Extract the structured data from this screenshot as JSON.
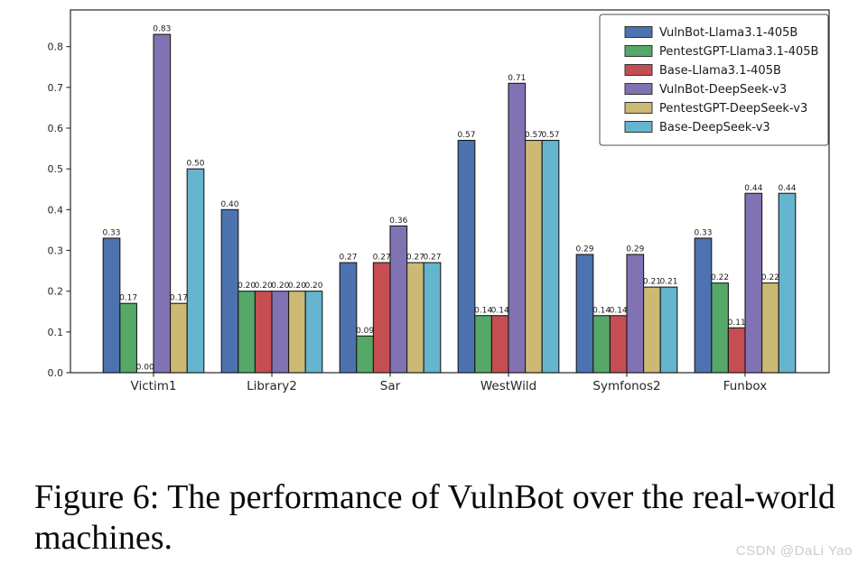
{
  "chart_data": {
    "type": "bar",
    "title": "",
    "categories": [
      "Victim1",
      "Library2",
      "Sar",
      "WestWild",
      "Symfonos2",
      "Funbox"
    ],
    "series": [
      {
        "name": "VulnBot-Llama3.1-405B",
        "color": "#4C72B0",
        "values": [
          0.33,
          0.4,
          0.27,
          0.57,
          0.29,
          0.33
        ]
      },
      {
        "name": "PentestGPT-Llama3.1-405B",
        "color": "#55A868",
        "values": [
          0.17,
          0.2,
          0.09,
          0.14,
          0.14,
          0.22
        ]
      },
      {
        "name": "Base-Llama3.1-405B",
        "color": "#C44E52",
        "values": [
          0.0,
          0.2,
          0.27,
          0.14,
          0.14,
          0.11
        ]
      },
      {
        "name": "VulnBot-DeepSeek-v3",
        "color": "#8172B3",
        "values": [
          0.83,
          0.2,
          0.36,
          0.71,
          0.29,
          0.44
        ]
      },
      {
        "name": "PentestGPT-DeepSeek-v3",
        "color": "#CCB974",
        "values": [
          0.17,
          0.2,
          0.27,
          0.57,
          0.21,
          0.22
        ]
      },
      {
        "name": "Base-DeepSeek-v3",
        "color": "#64B5CD",
        "values": [
          0.5,
          0.2,
          0.27,
          0.57,
          0.21,
          0.44
        ]
      }
    ],
    "xlabel": "",
    "ylabel": "",
    "ylim": [
      0.0,
      0.89
    ],
    "yticks": [
      0.0,
      0.1,
      0.2,
      0.3,
      0.4,
      0.5,
      0.6,
      0.7,
      0.8
    ],
    "grid": false,
    "legend_position": "upper right",
    "bar_value_label_decimals": 2,
    "bar_edge_color": "#1a1a1a",
    "axis_color": "#262626"
  },
  "caption": {
    "text": "Figure 6: The performance of VulnBot over the real-world machines."
  },
  "watermark": {
    "text": "CSDN @DaLi Yao"
  }
}
